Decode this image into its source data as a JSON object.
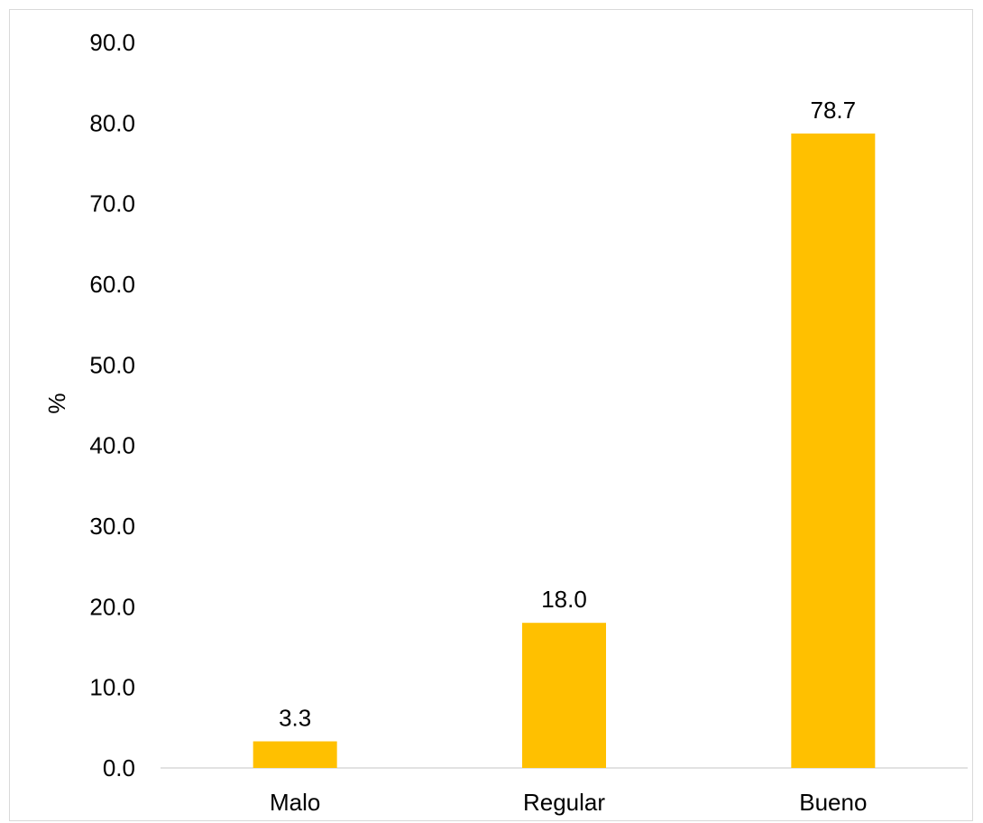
{
  "chart_data": {
    "type": "bar",
    "categories": [
      "Malo",
      "Regular",
      "Bueno"
    ],
    "values": [
      3.3,
      18.0,
      78.7
    ],
    "data_labels": [
      "3.3",
      "18.0",
      "78.7"
    ],
    "title": "",
    "xlabel": "",
    "ylabel": "%",
    "ylim": [
      0,
      90
    ],
    "yticks": [
      "0.0",
      "10.0",
      "20.0",
      "30.0",
      "40.0",
      "50.0",
      "60.0",
      "70.0",
      "80.0",
      "90.0"
    ],
    "grid": false,
    "legend": "none",
    "bar_color": "#FFC000"
  }
}
